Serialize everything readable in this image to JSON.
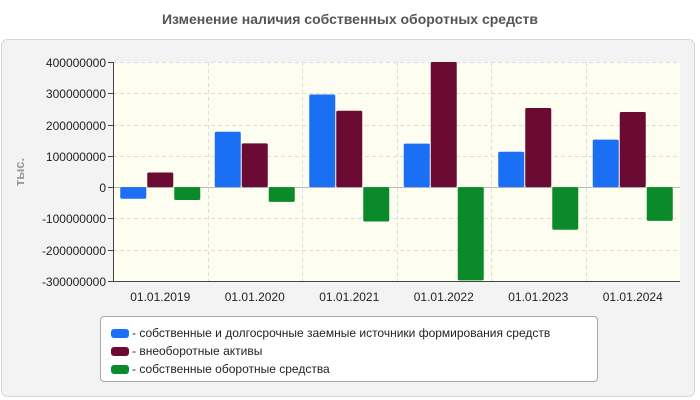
{
  "chart_data": {
    "type": "bar",
    "title": "Изменение наличия собственных оборотных средств",
    "ylabel": "тыс.",
    "xlabel": "",
    "categories": [
      "01.01.2019",
      "01.01.2020",
      "01.01.2021",
      "01.01.2022",
      "01.01.2023",
      "01.01.2024"
    ],
    "ylim": [
      -300000000,
      400000000
    ],
    "yticks": [
      400000000,
      300000000,
      200000000,
      100000000,
      0,
      -100000000,
      -200000000,
      -300000000
    ],
    "ytick_labels": [
      "400000000",
      "300000000",
      "200000000",
      "100000000",
      "0",
      "-100000000",
      "-200000000",
      "-300000000"
    ],
    "grid": true,
    "legend_position": "bottom",
    "series": [
      {
        "name": "- собственные и долгосрочные заемные источники формирования средств",
        "color": "#1a6ff5",
        "values": [
          -37000000,
          177000000,
          296000000,
          139000000,
          113000000,
          152000000
        ]
      },
      {
        "name": "- внеоборотные активы",
        "color": "#6b0b33",
        "values": [
          47000000,
          140000000,
          244000000,
          400000000,
          253000000,
          240000000
        ]
      },
      {
        "name": "- собственные оборотные средства",
        "color": "#0a8a2a",
        "values": [
          -41000000,
          -47000000,
          -110000000,
          -298000000,
          -136000000,
          -108000000
        ]
      }
    ]
  }
}
